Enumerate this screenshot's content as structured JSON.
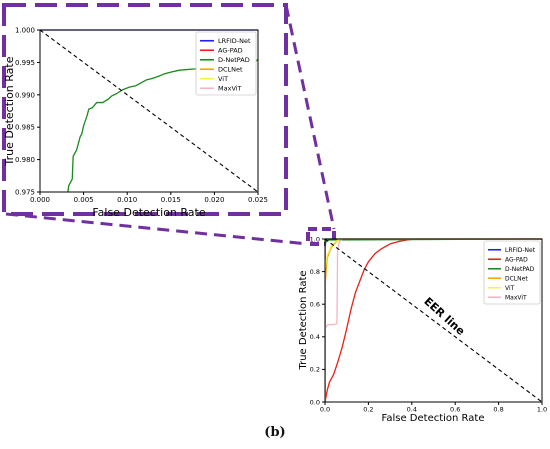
{
  "caption": "(b)",
  "eer_label": "EER line",
  "colors": {
    "LRFID-Net": "#1f1fff",
    "AG-PAD": "#e8201a",
    "D-NetPAD": "#1a8a1a",
    "DCLNet": "#f0a800",
    "ViT": "#f5f04a",
    "MaxViT": "#f4b6c0",
    "EER": "#000000",
    "callout": "#7030a0"
  },
  "chart_data": [
    {
      "type": "line",
      "name": "zoom-inset",
      "xlabel": "False Detection Rate",
      "ylabel": "True Detection Rate",
      "xlim": [
        0.0,
        0.025
      ],
      "ylim": [
        0.975,
        1.0
      ],
      "xticks": [
        "0.000",
        "0.005",
        "0.010",
        "0.015",
        "0.020",
        "0.025"
      ],
      "yticks": [
        "0.975",
        "0.980",
        "0.985",
        "0.990",
        "0.995",
        "1.000"
      ],
      "legend": "top-right",
      "grid": false,
      "series": [
        {
          "name": "LRFID-Net",
          "x": [
            0.0,
            0.025
          ],
          "y": [
            1.0,
            1.0
          ]
        },
        {
          "name": "AG-PAD",
          "x": [],
          "y": []
        },
        {
          "name": "D-NetPAD",
          "x": [
            0.0032,
            0.0033,
            0.0037,
            0.0038,
            0.0042,
            0.0044,
            0.0046,
            0.0048,
            0.005,
            0.0052,
            0.0054,
            0.0056,
            0.006,
            0.0065,
            0.0072,
            0.0078,
            0.0082,
            0.0088,
            0.0095,
            0.0103,
            0.011,
            0.0118,
            0.0122,
            0.0128,
            0.0135,
            0.0142,
            0.015,
            0.016,
            0.0178,
            0.019,
            0.0205,
            0.022,
            0.0235,
            0.0245,
            0.025
          ],
          "y": [
            0.975,
            0.976,
            0.977,
            0.9805,
            0.9815,
            0.9825,
            0.9835,
            0.984,
            0.9852,
            0.986,
            0.9868,
            0.9878,
            0.988,
            0.9888,
            0.9888,
            0.9893,
            0.9898,
            0.9902,
            0.9908,
            0.9912,
            0.9914,
            0.992,
            0.9923,
            0.9925,
            0.9928,
            0.9932,
            0.9935,
            0.9938,
            0.994,
            0.9942,
            0.9943,
            0.9945,
            0.9947,
            0.9948,
            0.9955
          ]
        },
        {
          "name": "DCLNet",
          "x": [],
          "y": []
        },
        {
          "name": "ViT",
          "x": [],
          "y": []
        },
        {
          "name": "MaxViT",
          "x": [],
          "y": []
        }
      ],
      "eer": {
        "x": [
          0.0,
          0.025
        ],
        "y": [
          1.0,
          0.975
        ]
      }
    },
    {
      "type": "line",
      "name": "main-roc",
      "xlabel": "False Detection Rate",
      "ylabel": "True Detection Rate",
      "xlim": [
        0.0,
        1.0
      ],
      "ylim": [
        0.0,
        1.0
      ],
      "xticks": [
        "0.0",
        "0.2",
        "0.4",
        "0.6",
        "0.8",
        "1.0"
      ],
      "yticks": [
        "0.0",
        "0.2",
        "0.4",
        "0.6",
        "0.8",
        "1.0"
      ],
      "legend": "top-right",
      "grid": false,
      "series": [
        {
          "name": "LRFID-Net",
          "x": [
            0.0,
            0.0,
            1.0
          ],
          "y": [
            0.0,
            1.0,
            1.0
          ]
        },
        {
          "name": "AG-PAD",
          "x": [
            0.0,
            0.01,
            0.02,
            0.04,
            0.06,
            0.08,
            0.1,
            0.12,
            0.14,
            0.16,
            0.18,
            0.2,
            0.23,
            0.26,
            0.3,
            0.34,
            0.38,
            0.42,
            0.5,
            1.0
          ],
          "y": [
            0.0,
            0.07,
            0.12,
            0.17,
            0.25,
            0.34,
            0.45,
            0.57,
            0.67,
            0.74,
            0.81,
            0.86,
            0.91,
            0.94,
            0.97,
            0.985,
            0.995,
            1.0,
            1.0,
            1.0
          ]
        },
        {
          "name": "D-NetPAD",
          "x": [
            0.0,
            0.0,
            0.003,
            0.005,
            0.01,
            0.02,
            1.0
          ],
          "y": [
            0.0,
            0.95,
            0.975,
            0.985,
            0.991,
            0.994,
            1.0
          ]
        },
        {
          "name": "DCLNet",
          "x": [
            0.0,
            0.0,
            0.005,
            0.01,
            0.02,
            0.03,
            0.05,
            0.07,
            1.0
          ],
          "y": [
            0.0,
            0.7,
            0.8,
            0.88,
            0.92,
            0.95,
            0.98,
            1.0,
            1.0
          ]
        },
        {
          "name": "ViT",
          "x": [
            0.0,
            0.0,
            0.01,
            0.02,
            0.03,
            0.05,
            0.07,
            1.0
          ],
          "y": [
            0.0,
            0.82,
            0.9,
            0.93,
            0.96,
            0.985,
            1.0,
            1.0
          ]
        },
        {
          "name": "MaxViT",
          "x": [
            0.0,
            0.0,
            0.01,
            0.015,
            0.04,
            0.055,
            0.058,
            0.065,
            0.08,
            1.0
          ],
          "y": [
            0.0,
            0.45,
            0.47,
            0.475,
            0.475,
            0.48,
            0.93,
            0.98,
            1.0,
            1.0
          ]
        }
      ],
      "eer": {
        "x": [
          0.0,
          1.0
        ],
        "y": [
          1.0,
          0.0
        ]
      }
    }
  ]
}
